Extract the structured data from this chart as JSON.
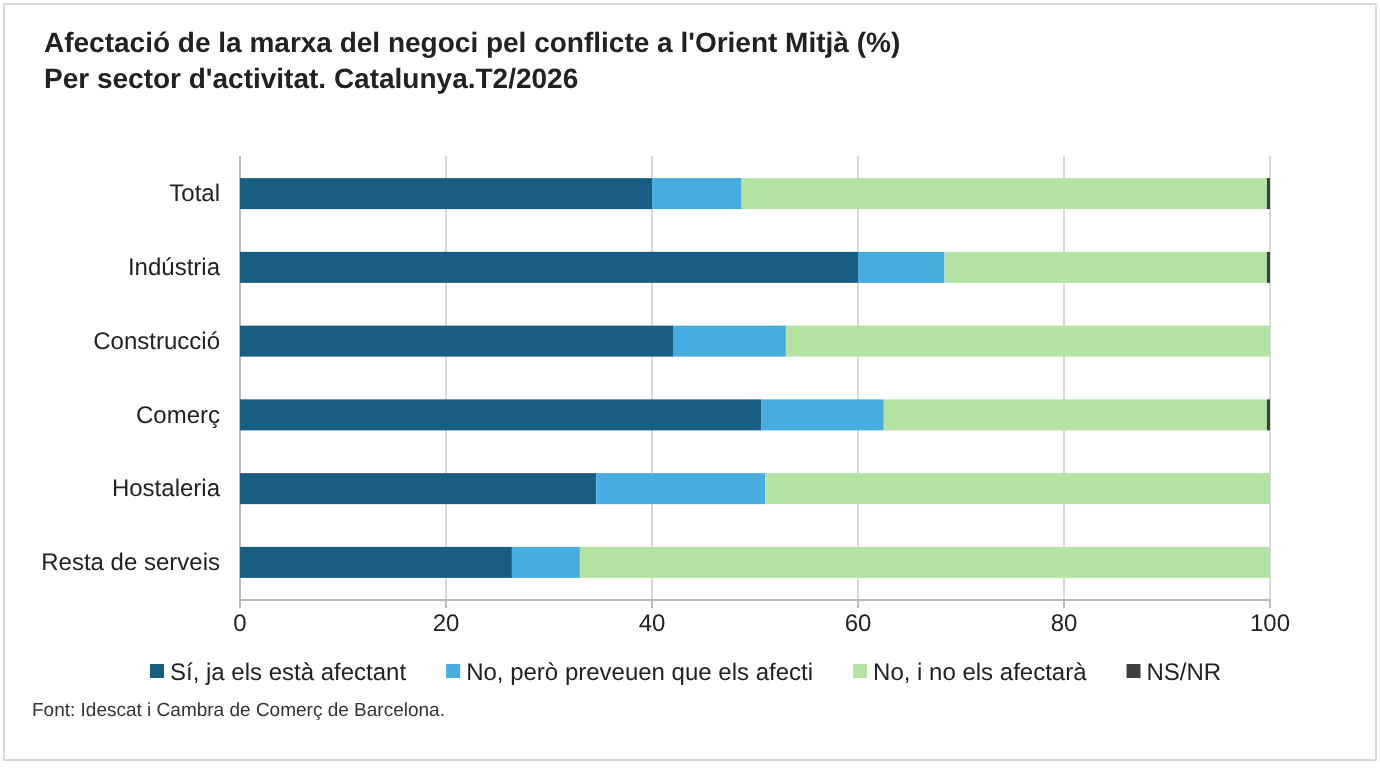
{
  "chart_data": {
    "type": "bar",
    "orientation": "horizontal",
    "stacked": true,
    "title": "Afectació de la marxa del negoci pel conflicte a l'Orient Mitjà (%)",
    "subtitle": "Per sector d'activitat. Catalunya.T2/2026",
    "categories": [
      "Total",
      "Indústria",
      "Construcció",
      "Comerç",
      "Hostaleria",
      "Resta de serveis"
    ],
    "series": [
      {
        "name": "Sí, ja els està afectant",
        "color": "#175e82",
        "values": [
          40,
          60,
          42.1,
          50.6,
          34.6,
          26.4
        ]
      },
      {
        "name": "No, però preveuen que els afecti",
        "color": "#47ade0",
        "values": [
          8.7,
          8.4,
          10.9,
          11.9,
          16.4,
          6.6
        ]
      },
      {
        "name": "No, i no els afectarà",
        "color": "#b5e3a3",
        "values": [
          51,
          31.3,
          47,
          37.2,
          49,
          67
        ]
      },
      {
        "name": "NS/NR",
        "color": "#404040",
        "values": [
          0.3,
          0.3,
          0,
          0.3,
          0,
          0
        ]
      }
    ],
    "xlim": [
      0,
      100
    ],
    "xticks": [
      0,
      20,
      40,
      60,
      80,
      100
    ],
    "grid": "x",
    "legend": "bottom",
    "annotations": [
      "Font: Idescat i Cambra de Comerç de Barcelona."
    ]
  }
}
